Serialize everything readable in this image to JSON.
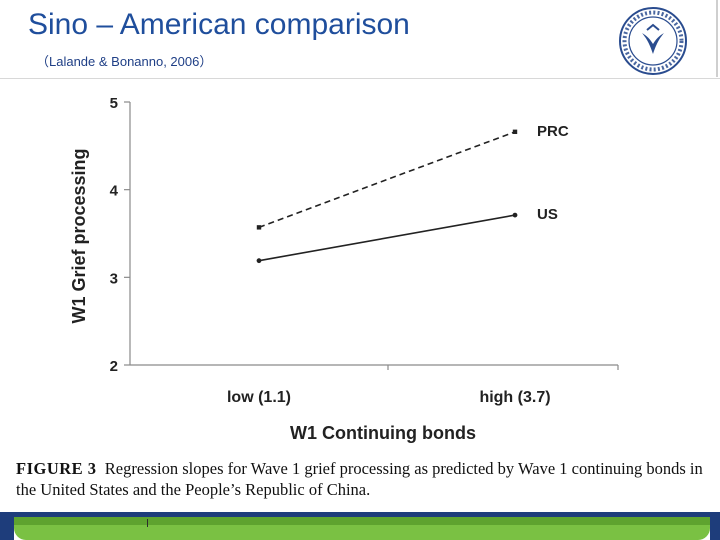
{
  "slide": {
    "title": "Sino – American comparison",
    "subtitle": "（Lalande & Bonanno, 2006）"
  },
  "caption": {
    "label": "FIGURE 3",
    "text": "Regression slopes for Wave 1 grief processing as predicted by Wave 1 continuing bonds in the United States and the People’s Republic of China."
  },
  "colors": {
    "title": "#1f4e9c",
    "accent_green": "#7ac143",
    "accent_navy": "#1e3d7b"
  },
  "chart_data": {
    "type": "line",
    "categories": [
      "low (1.1)",
      "high (3.7)"
    ],
    "series": [
      {
        "name": "PRC",
        "values": [
          3.57,
          4.66
        ],
        "style": "dashed"
      },
      {
        "name": "US",
        "values": [
          3.19,
          3.71
        ],
        "style": "solid"
      }
    ],
    "xlabel": "W1 Continuing bonds",
    "ylabel": "W1 Grief processing",
    "ylim": [
      2,
      5
    ],
    "yticks": [
      2,
      3,
      4,
      5
    ],
    "legend": "end-of-line labels",
    "grid": false
  }
}
